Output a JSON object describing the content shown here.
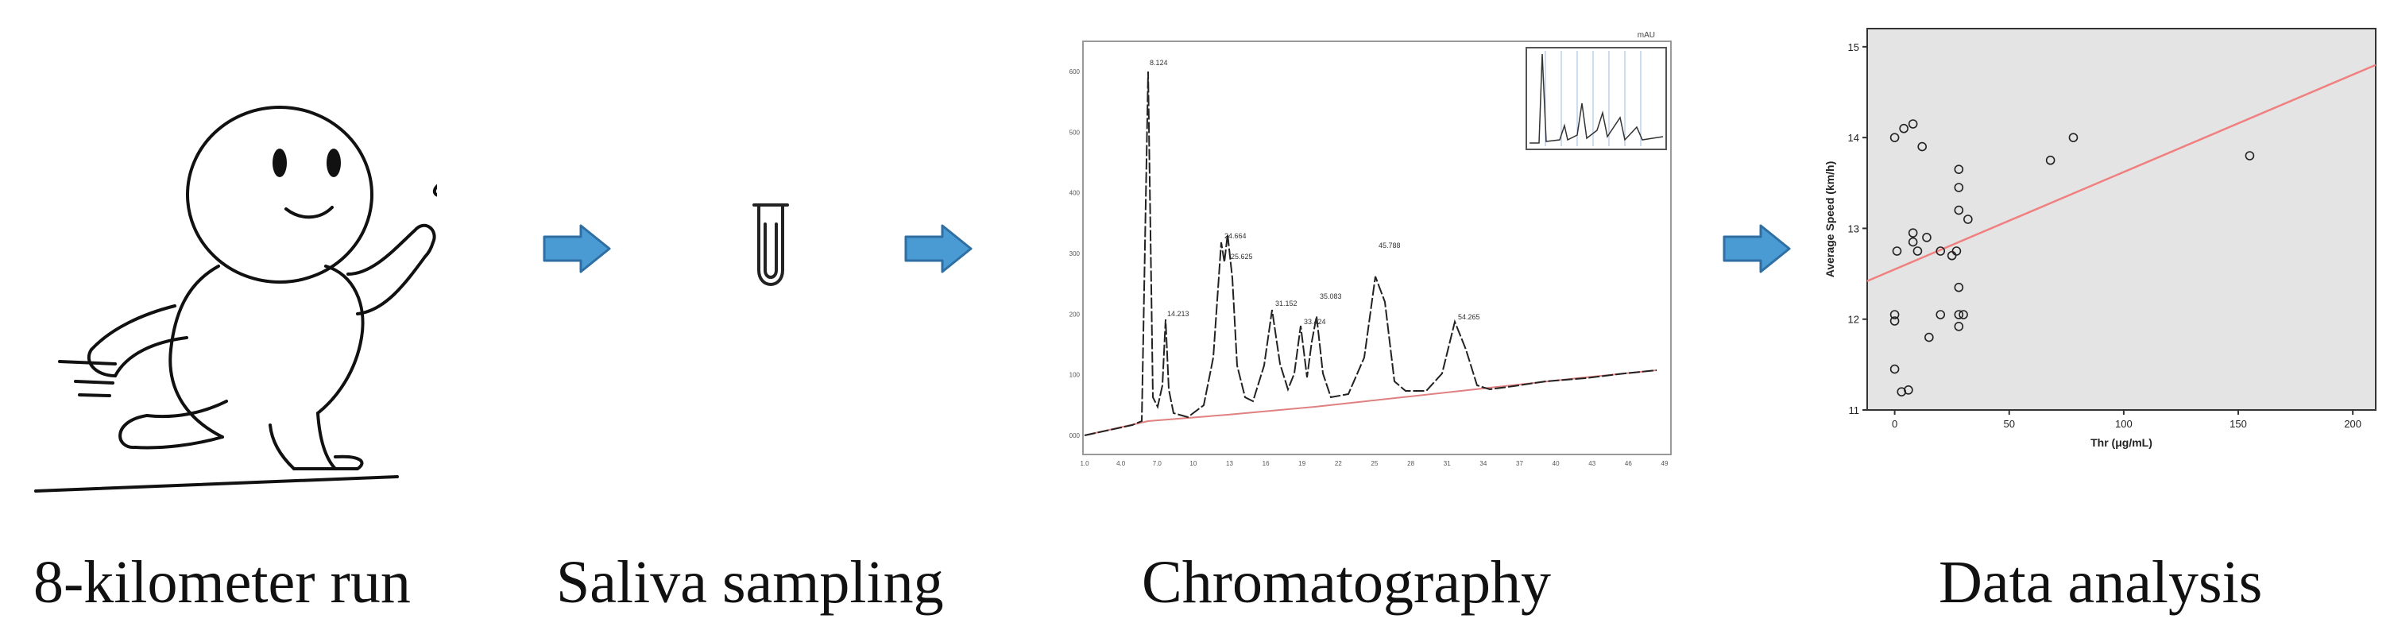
{
  "steps": [
    {
      "label": "8-kilometer run",
      "icon": "running-figure-icon"
    },
    {
      "label": "Saliva sampling",
      "icon": "test-tube-icon"
    },
    {
      "label": "Chromatography",
      "icon": "chromatogram-icon"
    },
    {
      "label": "Data analysis",
      "icon": "scatter-plot-icon"
    }
  ],
  "colors": {
    "arrow_fill": "#4a9bd4",
    "arrow_stroke": "#2f6fa3",
    "fit_line": "#f08080",
    "plot_bg": "#e4e4e4"
  },
  "chromatogram": {
    "corner_label": "mAU",
    "y_ticks": [
      "0.600",
      "0.500",
      "0.400",
      "0.300",
      "0.200",
      "0.100",
      "0.000"
    ],
    "x_ticks": [
      "1.0",
      "4.0",
      "7.0",
      "10",
      "13",
      "16",
      "19",
      "22",
      "25",
      "28",
      "31",
      "34",
      "37",
      "40",
      "43",
      "46",
      "49"
    ],
    "peak_labels": [
      "8.124",
      "14.213",
      "24.664",
      "25.625",
      "31.152",
      "33.424",
      "35.083",
      "45.788",
      "54.265"
    ]
  },
  "chart_data": {
    "type": "scatter",
    "title": "",
    "xlabel": "Thr (μg/mL)",
    "ylabel": "Average Speed (km/h)",
    "xlim": [
      -12,
      210
    ],
    "ylim": [
      11,
      15.2
    ],
    "x_ticks": [
      0,
      50,
      100,
      150,
      200
    ],
    "y_ticks": [
      11,
      12,
      13,
      14,
      15
    ],
    "points": [
      {
        "x": 0,
        "y": 14.0
      },
      {
        "x": 4,
        "y": 14.1
      },
      {
        "x": 8,
        "y": 14.15
      },
      {
        "x": 12,
        "y": 13.9
      },
      {
        "x": 1,
        "y": 12.75
      },
      {
        "x": 8,
        "y": 12.95
      },
      {
        "x": 8,
        "y": 12.85
      },
      {
        "x": 10,
        "y": 12.75
      },
      {
        "x": 14,
        "y": 12.9
      },
      {
        "x": 20,
        "y": 12.75
      },
      {
        "x": 0,
        "y": 12.05
      },
      {
        "x": 0,
        "y": 11.98
      },
      {
        "x": 0,
        "y": 11.45
      },
      {
        "x": 3,
        "y": 11.2
      },
      {
        "x": 6,
        "y": 11.22
      },
      {
        "x": 15,
        "y": 11.8
      },
      {
        "x": 20,
        "y": 12.05
      },
      {
        "x": 25,
        "y": 12.7
      },
      {
        "x": 27,
        "y": 12.75
      },
      {
        "x": 28,
        "y": 13.65
      },
      {
        "x": 28,
        "y": 13.45
      },
      {
        "x": 28,
        "y": 13.2
      },
      {
        "x": 28,
        "y": 12.35
      },
      {
        "x": 28,
        "y": 12.05
      },
      {
        "x": 30,
        "y": 12.05
      },
      {
        "x": 28,
        "y": 11.92
      },
      {
        "x": 32,
        "y": 13.1
      },
      {
        "x": 68,
        "y": 13.75
      },
      {
        "x": 78,
        "y": 14.0
      },
      {
        "x": 155,
        "y": 13.8
      }
    ],
    "fit_line": {
      "x": [
        -12,
        210
      ],
      "y": [
        12.42,
        14.8
      ]
    }
  }
}
